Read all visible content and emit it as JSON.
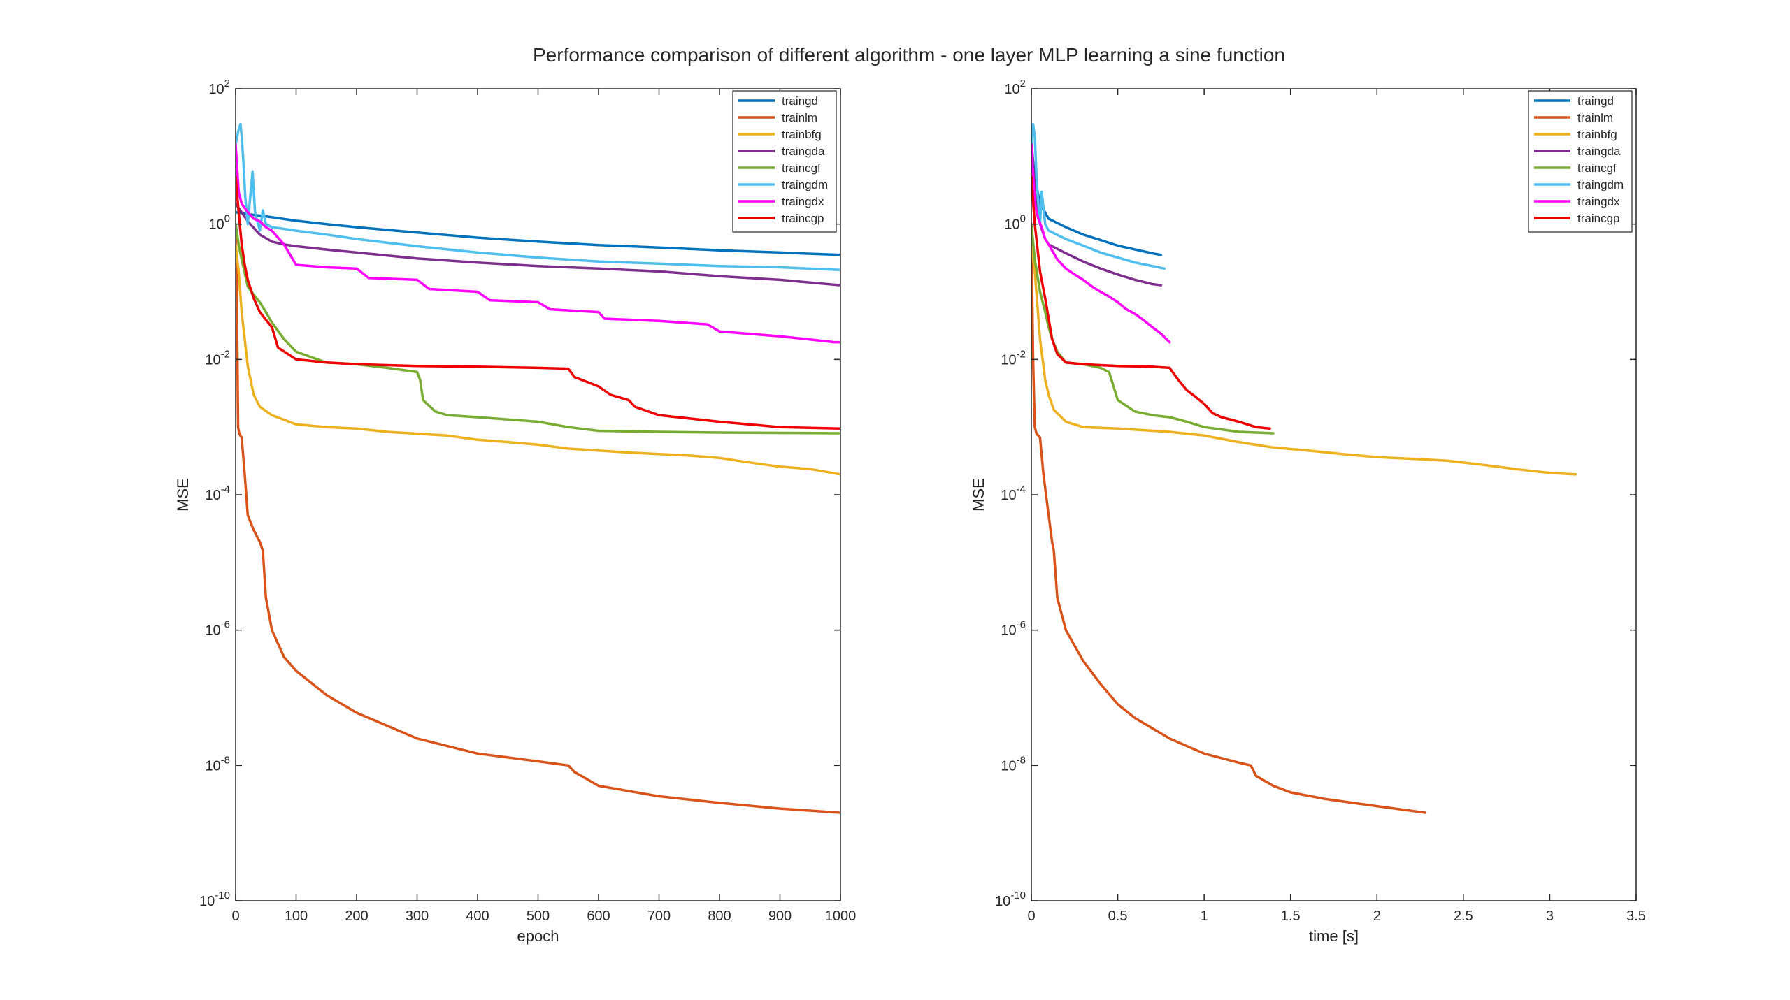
{
  "figure": {
    "title": "Performance comparison of different algorithm - one layer MLP learning a sine function"
  },
  "legend_colors": {
    "traingd": "#0072BD",
    "trainlm": "#D95319",
    "trainbfg": "#EDB120",
    "traingda": "#7E2F8E",
    "traincgf": "#77AC30",
    "traingdm": "#4DBEEE",
    "traingdx": "#FF00FF",
    "traincgp": "#EE0000"
  },
  "chart_data": [
    {
      "type": "line",
      "xlabel": "epoch",
      "ylabel": "MSE",
      "yscale": "log",
      "xlim": [
        0,
        1000
      ],
      "ylim": [
        1e-10,
        100
      ],
      "xticks": [
        "0",
        "100",
        "200",
        "300",
        "400",
        "500",
        "600",
        "700",
        "800",
        "900",
        "1000"
      ],
      "yticks": [
        {
          "base": "10",
          "exp": "-10"
        },
        {
          "base": "10",
          "exp": "-8"
        },
        {
          "base": "10",
          "exp": "-6"
        },
        {
          "base": "10",
          "exp": "-4"
        },
        {
          "base": "10",
          "exp": "-2"
        },
        {
          "base": "10",
          "exp": "0"
        },
        {
          "base": "10",
          "exp": "2"
        }
      ],
      "grid": false,
      "legend": "top-right",
      "series": [
        {
          "name": "traingd",
          "x": [
            0,
            20,
            50,
            100,
            150,
            200,
            300,
            400,
            500,
            600,
            700,
            800,
            900,
            1000
          ],
          "y": [
            1.5,
            1.4,
            1.3,
            1.12,
            1.0,
            0.9,
            0.75,
            0.63,
            0.55,
            0.49,
            0.45,
            0.41,
            0.38,
            0.35
          ]
        },
        {
          "name": "trainlm",
          "x": [
            0,
            2,
            4,
            6,
            10,
            15,
            20,
            30,
            40,
            45,
            50,
            60,
            80,
            100,
            150,
            200,
            300,
            400,
            500,
            550,
            560,
            600,
            700,
            800,
            900,
            1000
          ],
          "y": [
            1.0,
            0.1,
            0.001,
            0.0008,
            0.0007,
            0.0002,
            5e-05,
            3e-05,
            2e-05,
            1.5e-05,
            3e-06,
            1e-06,
            4e-07,
            2.5e-07,
            1.1e-07,
            6e-08,
            2.5e-08,
            1.5e-08,
            1.15e-08,
            1e-08,
            8e-09,
            5e-09,
            3.5e-09,
            2.8e-09,
            2.3e-09,
            2e-09
          ]
        },
        {
          "name": "trainbfg",
          "x": [
            0,
            5,
            10,
            15,
            20,
            30,
            40,
            60,
            100,
            150,
            200,
            250,
            300,
            350,
            400,
            450,
            500,
            550,
            600,
            650,
            700,
            750,
            800,
            850,
            900,
            950,
            1000
          ],
          "y": [
            0.5,
            0.2,
            0.05,
            0.02,
            0.008,
            0.003,
            0.002,
            0.0015,
            0.0011,
            0.001,
            0.00095,
            0.00085,
            0.0008,
            0.00075,
            0.00065,
            0.0006,
            0.00055,
            0.00048,
            0.00045,
            0.00042,
            0.0004,
            0.00038,
            0.00035,
            0.0003,
            0.00026,
            0.00024,
            0.0002
          ]
        },
        {
          "name": "traingda",
          "x": [
            0,
            10,
            20,
            40,
            60,
            80,
            100,
            150,
            200,
            300,
            400,
            500,
            600,
            700,
            800,
            900,
            1000
          ],
          "y": [
            2.0,
            1.5,
            1.1,
            0.7,
            0.55,
            0.5,
            0.47,
            0.42,
            0.38,
            0.31,
            0.27,
            0.24,
            0.22,
            0.2,
            0.17,
            0.15,
            0.125
          ]
        },
        {
          "name": "traincgf",
          "x": [
            0,
            5,
            10,
            20,
            30,
            40,
            50,
            60,
            80,
            100,
            150,
            200,
            250,
            300,
            305,
            310,
            330,
            350,
            400,
            500,
            550,
            600,
            700,
            800,
            900,
            1000
          ],
          "y": [
            1.0,
            0.5,
            0.3,
            0.12,
            0.09,
            0.07,
            0.05,
            0.035,
            0.02,
            0.013,
            0.009,
            0.0085,
            0.0075,
            0.0065,
            0.005,
            0.0025,
            0.0017,
            0.0015,
            0.0014,
            0.0012,
            0.001,
            0.00088,
            0.00085,
            0.00083,
            0.00082,
            0.00081
          ]
        },
        {
          "name": "traingdm",
          "x": [
            0,
            5,
            8,
            10,
            13,
            16,
            20,
            25,
            28,
            32,
            40,
            45,
            50,
            60,
            80,
            100,
            150,
            200,
            300,
            400,
            500,
            600,
            700,
            800,
            900,
            1000
          ],
          "y": [
            15,
            25,
            30,
            20,
            8,
            2.5,
            1.0,
            3.0,
            6.0,
            1.5,
            0.8,
            1.6,
            1.0,
            0.9,
            0.85,
            0.8,
            0.7,
            0.6,
            0.47,
            0.38,
            0.32,
            0.28,
            0.26,
            0.24,
            0.23,
            0.21
          ]
        },
        {
          "name": "traingdx",
          "x": [
            0,
            5,
            10,
            20,
            30,
            40,
            50,
            60,
            80,
            100,
            150,
            200,
            220,
            300,
            320,
            400,
            420,
            500,
            520,
            600,
            610,
            700,
            780,
            800,
            900,
            990,
            1000
          ],
          "y": [
            15,
            3.0,
            2.0,
            1.5,
            1.2,
            1.1,
            0.9,
            0.8,
            0.5,
            0.25,
            0.23,
            0.22,
            0.16,
            0.15,
            0.11,
            0.1,
            0.075,
            0.07,
            0.055,
            0.05,
            0.04,
            0.037,
            0.033,
            0.026,
            0.022,
            0.018,
            0.018
          ]
        },
        {
          "name": "traincgp",
          "x": [
            0,
            5,
            10,
            15,
            20,
            30,
            40,
            60,
            70,
            100,
            150,
            200,
            300,
            400,
            500,
            550,
            560,
            600,
            620,
            650,
            660,
            700,
            800,
            900,
            1000
          ],
          "y": [
            5.0,
            1.5,
            0.5,
            0.25,
            0.15,
            0.08,
            0.05,
            0.03,
            0.015,
            0.01,
            0.009,
            0.0085,
            0.008,
            0.0078,
            0.0075,
            0.0073,
            0.0055,
            0.004,
            0.003,
            0.0025,
            0.002,
            0.0015,
            0.0012,
            0.001,
            0.00095
          ]
        }
      ]
    },
    {
      "type": "line",
      "xlabel": "time [s]",
      "ylabel": "MSE",
      "yscale": "log",
      "xlim": [
        0,
        3.5
      ],
      "ylim": [
        1e-10,
        100
      ],
      "xticks": [
        "0",
        "0.5",
        "1",
        "1.5",
        "2",
        "2.5",
        "3",
        "3.5"
      ],
      "yticks": [
        {
          "base": "10",
          "exp": "-10"
        },
        {
          "base": "10",
          "exp": "-8"
        },
        {
          "base": "10",
          "exp": "-6"
        },
        {
          "base": "10",
          "exp": "-4"
        },
        {
          "base": "10",
          "exp": "-2"
        },
        {
          "base": "10",
          "exp": "0"
        },
        {
          "base": "10",
          "exp": "2"
        }
      ],
      "grid": false,
      "legend": "top-right",
      "series": [
        {
          "name": "traingd",
          "x": [
            0,
            0.02,
            0.05,
            0.1,
            0.2,
            0.3,
            0.4,
            0.5,
            0.6,
            0.7,
            0.75
          ],
          "y": [
            15,
            5.0,
            2.0,
            1.2,
            0.9,
            0.7,
            0.58,
            0.48,
            0.42,
            0.37,
            0.35
          ]
        },
        {
          "name": "trainlm",
          "x": [
            0,
            0.01,
            0.02,
            0.03,
            0.05,
            0.07,
            0.1,
            0.12,
            0.13,
            0.15,
            0.2,
            0.3,
            0.4,
            0.5,
            0.6,
            0.8,
            1.0,
            1.2,
            1.27,
            1.3,
            1.4,
            1.5,
            1.7,
            2.0,
            2.28
          ],
          "y": [
            1.0,
            0.01,
            0.001,
            0.0008,
            0.0007,
            0.0002,
            5e-05,
            2e-05,
            1.5e-05,
            3e-06,
            1e-06,
            3.5e-07,
            1.6e-07,
            8e-08,
            5e-08,
            2.5e-08,
            1.5e-08,
            1.1e-08,
            1e-08,
            7e-09,
            5e-09,
            4e-09,
            3.2e-09,
            2.5e-09,
            2e-09
          ]
        },
        {
          "name": "trainbfg",
          "x": [
            0,
            0.02,
            0.05,
            0.08,
            0.1,
            0.13,
            0.2,
            0.3,
            0.5,
            0.8,
            1.0,
            1.2,
            1.4,
            1.6,
            1.8,
            2.0,
            2.2,
            2.4,
            2.6,
            2.8,
            3.0,
            3.15
          ],
          "y": [
            0.5,
            0.2,
            0.02,
            0.005,
            0.003,
            0.0018,
            0.0012,
            0.001,
            0.00095,
            0.00085,
            0.00075,
            0.0006,
            0.0005,
            0.00045,
            0.0004,
            0.00036,
            0.00034,
            0.00032,
            0.00028,
            0.00024,
            0.00021,
            0.0002
          ]
        },
        {
          "name": "traingda",
          "x": [
            0,
            0.02,
            0.05,
            0.08,
            0.1,
            0.2,
            0.3,
            0.4,
            0.5,
            0.6,
            0.7,
            0.75
          ],
          "y": [
            20,
            3.0,
            1.0,
            0.6,
            0.5,
            0.37,
            0.28,
            0.22,
            0.18,
            0.15,
            0.13,
            0.125
          ]
        },
        {
          "name": "traincgf",
          "x": [
            0,
            0.02,
            0.05,
            0.08,
            0.1,
            0.12,
            0.15,
            0.2,
            0.3,
            0.4,
            0.45,
            0.5,
            0.6,
            0.7,
            0.8,
            0.9,
            1.0,
            1.2,
            1.4
          ],
          "y": [
            1.0,
            0.3,
            0.1,
            0.05,
            0.03,
            0.02,
            0.013,
            0.009,
            0.0085,
            0.0075,
            0.0065,
            0.0025,
            0.0017,
            0.0015,
            0.0014,
            0.0012,
            0.001,
            0.00085,
            0.00081
          ]
        },
        {
          "name": "traingdm",
          "x": [
            0,
            0.01,
            0.02,
            0.03,
            0.04,
            0.05,
            0.06,
            0.08,
            0.1,
            0.2,
            0.3,
            0.4,
            0.5,
            0.6,
            0.7,
            0.77
          ],
          "y": [
            15,
            30,
            20,
            5.0,
            2.0,
            1.0,
            3.0,
            1.0,
            0.8,
            0.6,
            0.48,
            0.38,
            0.32,
            0.27,
            0.24,
            0.22
          ]
        },
        {
          "name": "traingdx",
          "x": [
            0,
            0.02,
            0.04,
            0.06,
            0.08,
            0.1,
            0.15,
            0.2,
            0.25,
            0.3,
            0.35,
            0.4,
            0.45,
            0.5,
            0.55,
            0.6,
            0.65,
            0.7,
            0.75,
            0.8
          ],
          "y": [
            15,
            2.0,
            1.2,
            0.9,
            0.6,
            0.5,
            0.3,
            0.22,
            0.18,
            0.15,
            0.12,
            0.1,
            0.085,
            0.07,
            0.055,
            0.047,
            0.038,
            0.03,
            0.024,
            0.018
          ]
        },
        {
          "name": "traincgp",
          "x": [
            0,
            0.02,
            0.05,
            0.08,
            0.1,
            0.12,
            0.15,
            0.2,
            0.3,
            0.5,
            0.7,
            0.8,
            0.85,
            0.9,
            0.95,
            1.0,
            1.05,
            1.1,
            1.2,
            1.3,
            1.38
          ],
          "y": [
            5.0,
            1.0,
            0.2,
            0.08,
            0.04,
            0.02,
            0.012,
            0.009,
            0.0085,
            0.008,
            0.0078,
            0.0075,
            0.005,
            0.0035,
            0.0028,
            0.0022,
            0.0016,
            0.0014,
            0.0012,
            0.001,
            0.00095
          ]
        }
      ]
    }
  ]
}
